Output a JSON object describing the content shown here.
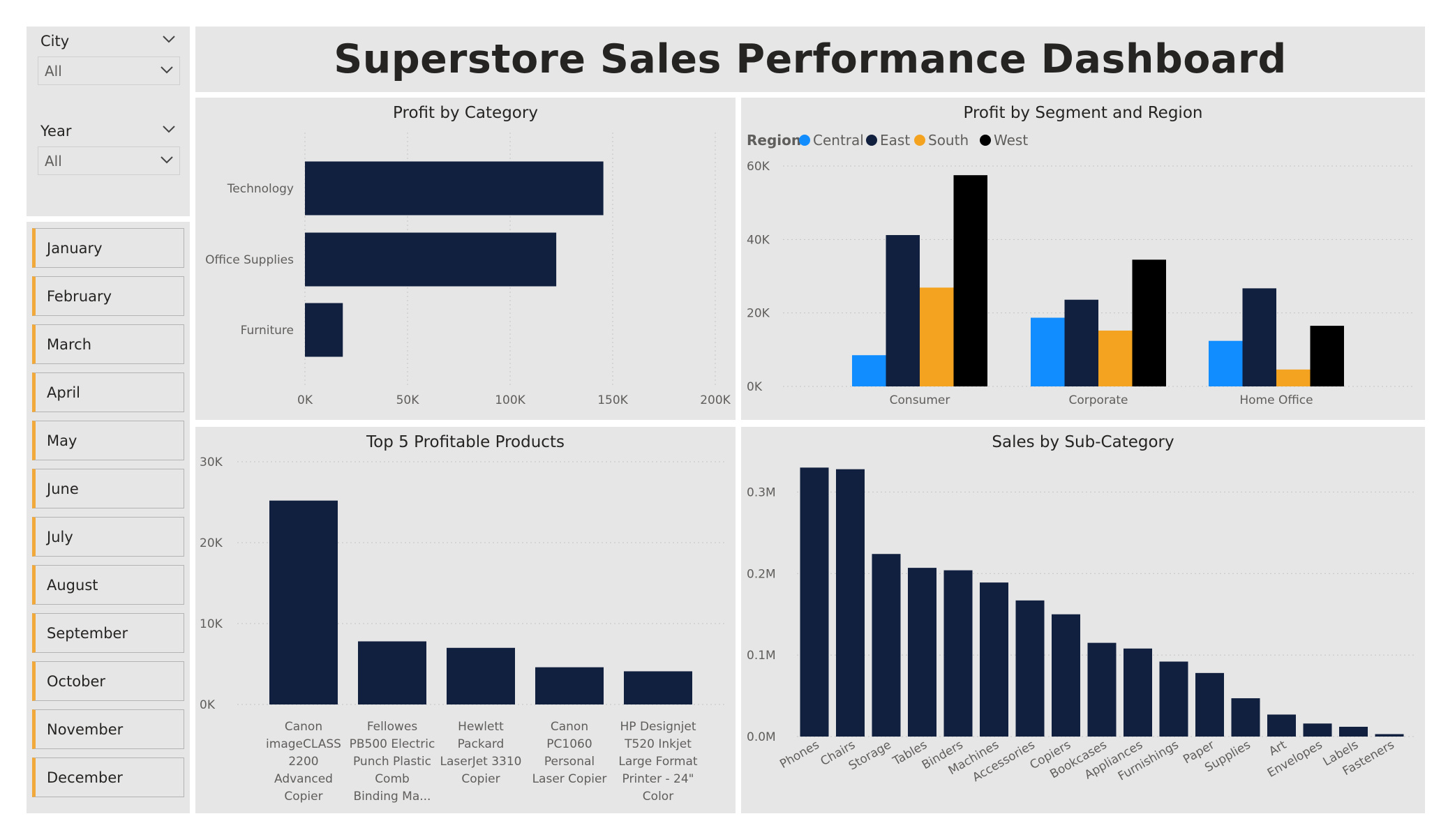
{
  "title": "Superstore Sales Performance Dashboard",
  "filters": {
    "city": {
      "label": "City",
      "value": "All"
    },
    "year": {
      "label": "Year",
      "value": "All"
    }
  },
  "months": [
    "January",
    "February",
    "March",
    "April",
    "May",
    "June",
    "July",
    "August",
    "September",
    "October",
    "November",
    "December"
  ],
  "colors": {
    "navy": "#12203f",
    "central": "#118dff",
    "east": "#12203f",
    "south": "#f4a320",
    "west": "#000000",
    "month_accent": "#f2a93b",
    "panel_bg": "#e6e6e6"
  },
  "chart_data": [
    {
      "id": "profit_by_category",
      "type": "bar",
      "orientation": "horizontal",
      "title": "Profit by Category",
      "categories": [
        "Technology",
        "Office Supplies",
        "Furniture"
      ],
      "values": [
        145455,
        122491,
        18451
      ],
      "xlim": [
        0,
        200000
      ],
      "ticks": [
        0,
        50000,
        100000,
        150000,
        200000
      ],
      "tick_labels": [
        "0K",
        "50K",
        "100K",
        "150K",
        "200K"
      ],
      "grid": true
    },
    {
      "id": "profit_by_segment_region",
      "type": "bar",
      "title": "Profit by Segment and Region",
      "legend_title": "Region",
      "legend_position": "top-left",
      "categories": [
        "Consumer",
        "Corporate",
        "Home Office"
      ],
      "series": [
        {
          "name": "Central",
          "color": "#118dff",
          "values": [
            8500,
            18700,
            12400
          ]
        },
        {
          "name": "East",
          "color": "#12203f",
          "values": [
            41200,
            23600,
            26700
          ]
        },
        {
          "name": "South",
          "color": "#f4a320",
          "values": [
            26900,
            15200,
            4600
          ]
        },
        {
          "name": "West",
          "color": "#000000",
          "values": [
            57500,
            34500,
            16500
          ]
        }
      ],
      "ylim": [
        0,
        60000
      ],
      "ticks": [
        0,
        20000,
        40000,
        60000
      ],
      "tick_labels": [
        "0K",
        "20K",
        "40K",
        "60K"
      ],
      "grid": true
    },
    {
      "id": "top5_products",
      "type": "bar",
      "title": "Top 5 Profitable Products",
      "categories": [
        [
          "Canon",
          "imageCLASS",
          "2200",
          "Advanced",
          "Copier"
        ],
        [
          "Fellowes",
          "PB500 Electric",
          "Punch Plastic",
          "Comb",
          "Binding Ma..."
        ],
        [
          "Hewlett",
          "Packard",
          "LaserJet 3310",
          "Copier"
        ],
        [
          "Canon",
          "PC1060",
          "Personal",
          "Laser Copier"
        ],
        [
          "HP Designjet",
          "T520 Inkjet",
          "Large Format",
          "Printer - 24\"",
          "Color"
        ]
      ],
      "values": [
        25200,
        7800,
        7000,
        4600,
        4100
      ],
      "ylim": [
        0,
        30000
      ],
      "ticks": [
        0,
        10000,
        20000,
        30000
      ],
      "tick_labels": [
        "0K",
        "10K",
        "20K",
        "30K"
      ],
      "grid": true
    },
    {
      "id": "sales_by_subcategory",
      "type": "bar",
      "title": "Sales by Sub-Category",
      "categories": [
        "Phones",
        "Chairs",
        "Storage",
        "Tables",
        "Binders",
        "Machines",
        "Accessories",
        "Copiers",
        "Bookcases",
        "Appliances",
        "Furnishings",
        "Paper",
        "Supplies",
        "Art",
        "Envelopes",
        "Labels",
        "Fasteners"
      ],
      "values": [
        0.33,
        0.328,
        0.224,
        0.207,
        0.204,
        0.189,
        0.167,
        0.15,
        0.115,
        0.108,
        0.092,
        0.078,
        0.047,
        0.027,
        0.016,
        0.012,
        0.003
      ],
      "ylim": [
        0,
        0.35
      ],
      "ticks": [
        0,
        0.1,
        0.2,
        0.3
      ],
      "tick_labels": [
        "0.0M",
        "0.1M",
        "0.2M",
        "0.3M"
      ],
      "grid": true
    }
  ]
}
